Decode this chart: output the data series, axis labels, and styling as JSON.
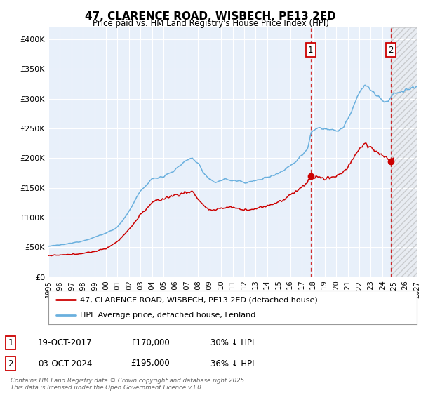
{
  "title": "47, CLARENCE ROAD, WISBECH, PE13 2ED",
  "subtitle": "Price paid vs. HM Land Registry's House Price Index (HPI)",
  "legend_property": "47, CLARENCE ROAD, WISBECH, PE13 2ED (detached house)",
  "legend_hpi": "HPI: Average price, detached house, Fenland",
  "annotation1_date": "19-OCT-2017",
  "annotation1_price": 170000,
  "annotation1_year": 2017.79,
  "annotation1_text": "30% ↓ HPI",
  "annotation2_date": "03-OCT-2024",
  "annotation2_price": 195000,
  "annotation2_year": 2024.75,
  "annotation2_text": "36% ↓ HPI",
  "footer": "Contains HM Land Registry data © Crown copyright and database right 2025.\nThis data is licensed under the Open Government Licence v3.0.",
  "ylim": [
    0,
    420000
  ],
  "xlim_start": 1995,
  "xlim_end": 2027,
  "hpi_color": "#6ab0de",
  "property_color": "#cc0000",
  "bg_color": "#dde8f5",
  "bg_color_light": "#e8f0fa",
  "grid_color": "#ffffff",
  "vline_color": "#cc0000",
  "hatch_color": "#bbbbbb"
}
